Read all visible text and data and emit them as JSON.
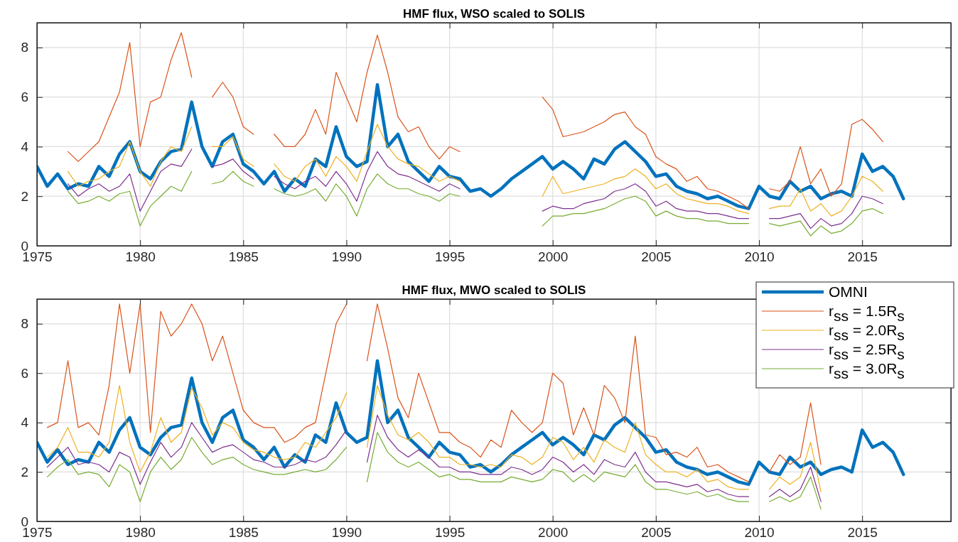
{
  "chart_data": [
    {
      "type": "line",
      "title": "HMF flux, WSO scaled to SOLIS",
      "xlim": [
        1975,
        2019.3
      ],
      "xticks": [
        1975,
        1980,
        1985,
        1990,
        1995,
        2000,
        2005,
        2010,
        2015
      ],
      "ylim": [
        0,
        9
      ],
      "yticks": [
        0,
        2,
        4,
        6,
        8
      ],
      "grid": true,
      "legend": false,
      "x": [
        1975,
        1975.5,
        1976,
        1976.5,
        1977,
        1977.5,
        1978,
        1978.5,
        1979,
        1979.5,
        1980,
        1980.5,
        1981,
        1981.5,
        1982,
        1982.5,
        1983,
        1983.5,
        1984,
        1984.5,
        1985,
        1985.5,
        1986,
        1986.5,
        1987,
        1987.5,
        1988,
        1988.5,
        1989,
        1989.5,
        1990,
        1990.5,
        1991,
        1991.5,
        1992,
        1992.5,
        1993,
        1993.5,
        1994,
        1994.5,
        1995,
        1995.5,
        1996,
        1996.5,
        1997,
        1997.5,
        1998,
        1998.5,
        1999,
        1999.5,
        2000,
        2000.5,
        2001,
        2001.5,
        2002,
        2002.5,
        2003,
        2003.5,
        2004,
        2004.5,
        2005,
        2005.5,
        2006,
        2006.5,
        2007,
        2007.5,
        2008,
        2008.5,
        2009,
        2009.5,
        2010,
        2010.5,
        2011,
        2011.5,
        2012,
        2012.5,
        2013,
        2013.5,
        2014,
        2014.5,
        2015,
        2015.5,
        2016,
        2016.5,
        2017
      ],
      "series": [
        {
          "color": "#0072bd",
          "values": [
            3.2,
            2.4,
            2.9,
            2.3,
            2.5,
            2.4,
            3.2,
            2.8,
            3.7,
            4.2,
            3.0,
            2.7,
            3.4,
            3.8,
            3.9,
            5.8,
            4.0,
            3.2,
            4.2,
            4.5,
            3.3,
            3.0,
            2.5,
            3.0,
            2.2,
            2.7,
            2.4,
            3.5,
            3.2,
            4.8,
            3.6,
            3.2,
            3.4,
            6.5,
            4.0,
            4.5,
            3.4,
            3.0,
            2.6,
            3.2,
            2.8,
            2.7,
            2.2,
            2.3,
            2.0,
            2.3,
            2.7,
            3.0,
            3.3,
            3.6,
            3.1,
            3.4,
            3.1,
            2.7,
            3.5,
            3.3,
            3.9,
            4.2,
            3.8,
            3.4,
            2.8,
            2.9,
            2.4,
            2.2,
            2.1,
            1.9,
            2.0,
            1.8,
            1.6,
            1.5,
            2.4,
            2.0,
            1.9,
            2.6,
            2.2,
            2.4,
            1.9,
            2.1,
            2.2,
            2.0,
            3.7,
            3.0,
            3.2,
            2.8,
            1.9
          ]
        },
        {
          "color": "#d95319",
          "values": [
            null,
            null,
            null,
            3.8,
            3.4,
            3.8,
            4.2,
            5.2,
            6.2,
            8.2,
            4.0,
            5.8,
            6.0,
            7.5,
            8.6,
            6.8,
            null,
            6.0,
            6.6,
            6.0,
            4.8,
            4.5,
            null,
            4.5,
            4.0,
            4.0,
            4.5,
            5.5,
            4.5,
            7.0,
            6.0,
            5.0,
            7.0,
            8.5,
            7.0,
            5.2,
            4.6,
            4.8,
            4.0,
            3.5,
            4.0,
            3.8,
            null,
            null,
            null,
            null,
            null,
            null,
            null,
            6.0,
            5.5,
            4.4,
            4.5,
            4.6,
            4.8,
            5.0,
            5.3,
            5.4,
            4.8,
            4.5,
            3.6,
            3.3,
            3.1,
            2.6,
            2.8,
            2.3,
            2.2,
            2.0,
            1.8,
            1.5,
            null,
            2.3,
            2.2,
            2.6,
            4.0,
            2.5,
            3.1,
            2.0,
            2.5,
            4.9,
            5.1,
            4.7,
            4.2,
            null,
            null
          ]
        },
        {
          "color": "#edb120",
          "values": [
            null,
            null,
            null,
            3.0,
            2.4,
            2.6,
            2.7,
            3.0,
            3.2,
            4.2,
            3.0,
            2.4,
            3.4,
            4.0,
            3.8,
            4.8,
            null,
            4.0,
            4.0,
            4.4,
            3.5,
            3.2,
            null,
            3.3,
            2.8,
            2.6,
            3.2,
            3.5,
            2.8,
            3.6,
            3.2,
            2.6,
            3.8,
            4.9,
            4.0,
            3.5,
            3.3,
            3.2,
            2.9,
            2.6,
            2.8,
            2.6,
            null,
            null,
            null,
            null,
            null,
            null,
            null,
            2.0,
            2.8,
            2.1,
            2.2,
            2.3,
            2.4,
            2.5,
            2.7,
            2.8,
            3.1,
            2.8,
            2.3,
            2.5,
            2.1,
            1.9,
            1.8,
            1.7,
            1.7,
            1.6,
            1.4,
            1.3,
            null,
            1.5,
            1.6,
            1.6,
            2.3,
            1.4,
            1.7,
            1.2,
            1.4,
            2.0,
            2.8,
            2.6,
            2.2,
            null,
            null
          ]
        },
        {
          "color": "#7e2f8e",
          "values": [
            null,
            null,
            null,
            2.5,
            2.0,
            2.3,
            2.5,
            2.2,
            2.4,
            2.9,
            1.4,
            2.2,
            3.0,
            3.3,
            3.2,
            3.9,
            null,
            3.2,
            3.3,
            3.5,
            3.0,
            2.7,
            null,
            2.8,
            2.5,
            2.3,
            2.6,
            2.8,
            2.4,
            3.0,
            2.5,
            1.8,
            3.0,
            3.8,
            3.2,
            2.9,
            2.8,
            2.6,
            2.4,
            2.2,
            2.5,
            2.3,
            null,
            null,
            null,
            null,
            null,
            null,
            null,
            1.4,
            1.6,
            1.5,
            1.5,
            1.7,
            1.8,
            1.9,
            2.2,
            2.3,
            2.5,
            2.2,
            1.6,
            1.8,
            1.5,
            1.4,
            1.4,
            1.3,
            1.3,
            1.2,
            1.1,
            1.1,
            null,
            1.1,
            1.1,
            1.2,
            1.3,
            0.7,
            1.1,
            0.8,
            0.9,
            1.3,
            2.0,
            1.9,
            1.7,
            null,
            null
          ]
        },
        {
          "color": "#77ac30",
          "values": [
            null,
            null,
            null,
            2.2,
            1.7,
            1.8,
            2.0,
            1.8,
            2.1,
            2.2,
            0.8,
            1.6,
            2.0,
            2.4,
            2.2,
            3.0,
            null,
            2.5,
            2.6,
            3.0,
            2.6,
            2.4,
            null,
            2.3,
            2.1,
            2.0,
            2.1,
            2.3,
            1.8,
            2.5,
            2.0,
            1.2,
            2.3,
            2.9,
            2.5,
            2.3,
            2.3,
            2.1,
            2.0,
            1.8,
            2.1,
            2.0,
            null,
            null,
            null,
            null,
            null,
            null,
            null,
            0.8,
            1.2,
            1.2,
            1.3,
            1.3,
            1.4,
            1.5,
            1.7,
            1.9,
            2.0,
            1.8,
            1.2,
            1.4,
            1.2,
            1.1,
            1.1,
            1.0,
            1.0,
            0.9,
            0.9,
            0.9,
            null,
            0.9,
            0.8,
            0.9,
            1.0,
            0.4,
            0.8,
            0.5,
            0.6,
            0.9,
            1.4,
            1.5,
            1.3,
            null,
            null
          ]
        }
      ]
    },
    {
      "type": "line",
      "title": "HMF flux, MWO scaled to SOLIS",
      "xlim": [
        1975,
        2019.3
      ],
      "xticks": [
        1975,
        1980,
        1985,
        1990,
        1995,
        2000,
        2005,
        2010,
        2015
      ],
      "ylim": [
        0,
        9
      ],
      "yticks": [
        0,
        2,
        4,
        6,
        8
      ],
      "grid": true,
      "legend": "top right",
      "x": [
        1975,
        1975.5,
        1976,
        1976.5,
        1977,
        1977.5,
        1978,
        1978.5,
        1979,
        1979.5,
        1980,
        1980.5,
        1981,
        1981.5,
        1982,
        1982.5,
        1983,
        1983.5,
        1984,
        1984.5,
        1985,
        1985.5,
        1986,
        1986.5,
        1987,
        1987.5,
        1988,
        1988.5,
        1989,
        1989.5,
        1990,
        1990.5,
        1991,
        1991.5,
        1992,
        1992.5,
        1993,
        1993.5,
        1994,
        1994.5,
        1995,
        1995.5,
        1996,
        1996.5,
        1997,
        1997.5,
        1998,
        1998.5,
        1999,
        1999.5,
        2000,
        2000.5,
        2001,
        2001.5,
        2002,
        2002.5,
        2003,
        2003.5,
        2004,
        2004.5,
        2005,
        2005.5,
        2006,
        2006.5,
        2007,
        2007.5,
        2008,
        2008.5,
        2009,
        2009.5,
        2010,
        2010.5,
        2011,
        2011.5,
        2012,
        2012.5,
        2013,
        2013.5,
        2014,
        2014.5,
        2015,
        2015.5,
        2016,
        2016.5,
        2017
      ],
      "series": [
        {
          "name": "OMNI",
          "color": "#0072bd",
          "values": [
            3.2,
            2.4,
            2.9,
            2.3,
            2.5,
            2.4,
            3.2,
            2.8,
            3.7,
            4.2,
            3.0,
            2.7,
            3.4,
            3.8,
            3.9,
            5.8,
            4.0,
            3.2,
            4.2,
            4.5,
            3.3,
            3.0,
            2.5,
            3.0,
            2.2,
            2.7,
            2.4,
            3.5,
            3.2,
            4.8,
            3.6,
            3.2,
            3.4,
            6.5,
            4.0,
            4.5,
            3.4,
            3.0,
            2.6,
            3.2,
            2.8,
            2.7,
            2.2,
            2.3,
            2.0,
            2.3,
            2.7,
            3.0,
            3.3,
            3.6,
            3.1,
            3.4,
            3.1,
            2.7,
            3.5,
            3.3,
            3.9,
            4.2,
            3.8,
            3.4,
            2.8,
            2.9,
            2.4,
            2.2,
            2.1,
            1.9,
            2.0,
            1.8,
            1.6,
            1.5,
            2.4,
            2.0,
            1.9,
            2.6,
            2.2,
            2.4,
            1.9,
            2.1,
            2.2,
            2.0,
            3.7,
            3.0,
            3.2,
            2.8,
            1.9
          ]
        },
        {
          "name": "r$_{ss}$ = 1.5R$_{s}$",
          "color": "#d95319",
          "values": [
            null,
            3.8,
            4.0,
            6.5,
            3.8,
            4.0,
            3.5,
            5.5,
            8.8,
            6.0,
            8.8,
            3.6,
            8.5,
            7.5,
            8.0,
            8.8,
            8.0,
            6.5,
            7.5,
            6.0,
            4.5,
            4.0,
            3.8,
            3.8,
            3.2,
            3.4,
            3.8,
            4.0,
            6.0,
            8.0,
            8.8,
            null,
            6.5,
            8.8,
            7.0,
            5.0,
            4.2,
            6.0,
            4.8,
            3.6,
            3.6,
            3.2,
            3.0,
            2.6,
            3.3,
            3.0,
            4.5,
            4.0,
            3.6,
            4.0,
            6.0,
            5.6,
            3.5,
            4.6,
            3.5,
            5.5,
            5.0,
            4.0,
            7.5,
            3.5,
            3.4,
            2.7,
            2.8,
            2.6,
            3.0,
            2.2,
            2.3,
            2.0,
            1.8,
            1.6,
            null,
            2.0,
            2.7,
            2.3,
            2.6,
            4.8,
            2.3,
            null,
            null,
            null,
            null,
            null,
            null,
            null,
            null
          ]
        },
        {
          "name": "r$_{ss}$ = 2.0R$_{s}$",
          "color": "#edb120",
          "values": [
            null,
            2.6,
            3.0,
            3.8,
            2.8,
            2.8,
            2.6,
            3.2,
            5.5,
            3.2,
            2.0,
            2.8,
            4.2,
            3.2,
            3.6,
            5.4,
            4.6,
            3.5,
            4.0,
            3.8,
            3.2,
            2.9,
            2.8,
            2.6,
            2.5,
            2.6,
            3.2,
            3.0,
            3.6,
            4.2,
            5.2,
            null,
            3.0,
            5.5,
            4.3,
            3.5,
            3.3,
            3.6,
            3.2,
            2.6,
            2.6,
            2.3,
            2.3,
            2.2,
            2.3,
            2.2,
            2.7,
            2.6,
            2.3,
            2.6,
            3.4,
            3.2,
            2.5,
            3.0,
            2.4,
            3.3,
            3.0,
            2.8,
            4.0,
            2.7,
            2.3,
            2.0,
            2.0,
            1.8,
            2.1,
            1.6,
            1.7,
            1.4,
            1.3,
            1.3,
            null,
            1.3,
            1.8,
            1.5,
            1.8,
            3.2,
            1.2,
            null,
            null,
            null,
            null,
            null,
            null,
            null,
            null
          ]
        },
        {
          "name": "r$_{ss}$ = 2.5R$_{s}$",
          "color": "#7e2f8e",
          "values": [
            null,
            2.2,
            2.6,
            3.0,
            2.3,
            2.4,
            2.3,
            2.0,
            2.8,
            2.6,
            1.5,
            2.4,
            3.2,
            2.6,
            3.0,
            4.0,
            3.4,
            2.8,
            3.0,
            3.1,
            2.8,
            2.5,
            2.4,
            2.2,
            2.2,
            2.3,
            2.5,
            2.4,
            2.6,
            3.1,
            3.7,
            null,
            2.4,
            4.3,
            3.4,
            2.9,
            2.6,
            2.9,
            2.6,
            2.2,
            2.2,
            2.0,
            2.0,
            1.9,
            1.9,
            1.9,
            2.2,
            2.1,
            1.9,
            2.1,
            2.6,
            2.4,
            2.0,
            2.3,
            1.9,
            2.5,
            2.3,
            2.2,
            2.8,
            2.0,
            1.6,
            1.6,
            1.5,
            1.4,
            1.5,
            1.2,
            1.3,
            1.1,
            1.0,
            1.0,
            null,
            1.0,
            1.3,
            1.0,
            1.3,
            2.2,
            0.8,
            null,
            null,
            null,
            null,
            null,
            null,
            null,
            null
          ]
        },
        {
          "name": "r$_{ss}$ = 3.0R$_{s}$",
          "color": "#77ac30",
          "values": [
            null,
            1.8,
            2.2,
            2.5,
            1.9,
            2.0,
            1.9,
            1.4,
            2.3,
            2.0,
            0.8,
            2.0,
            2.6,
            2.1,
            2.5,
            3.4,
            2.8,
            2.3,
            2.5,
            2.6,
            2.3,
            2.1,
            2.0,
            1.9,
            1.9,
            2.0,
            2.1,
            2.0,
            2.1,
            2.5,
            3.0,
            null,
            1.6,
            3.6,
            2.8,
            2.4,
            2.2,
            2.4,
            2.1,
            1.8,
            1.9,
            1.7,
            1.7,
            1.6,
            1.6,
            1.6,
            1.8,
            1.7,
            1.6,
            1.7,
            2.1,
            2.0,
            1.6,
            1.9,
            1.6,
            2.0,
            1.9,
            1.8,
            2.3,
            1.6,
            1.3,
            1.3,
            1.2,
            1.1,
            1.2,
            1.0,
            1.1,
            0.9,
            0.8,
            0.8,
            null,
            0.8,
            1.0,
            0.8,
            1.0,
            1.8,
            0.5,
            null,
            null,
            null,
            null,
            null,
            null,
            null,
            null
          ]
        }
      ]
    }
  ]
}
